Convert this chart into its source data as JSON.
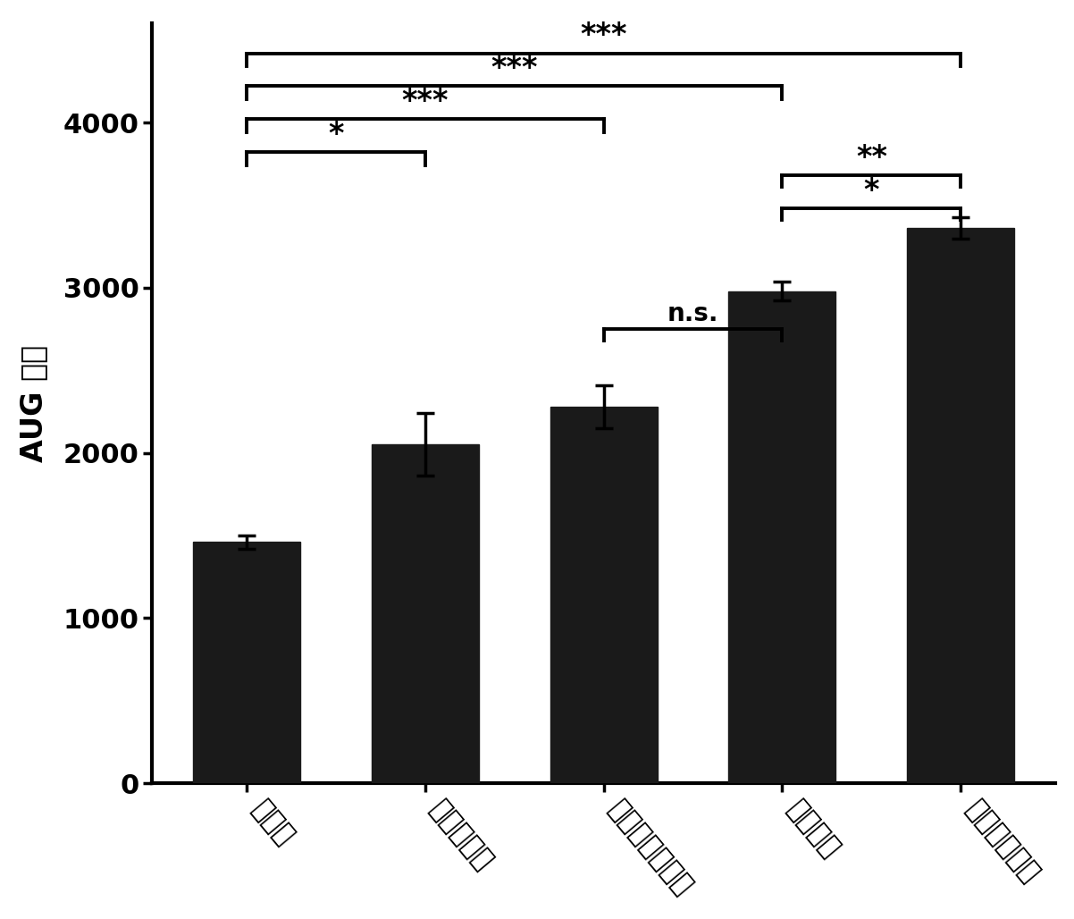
{
  "categories": [
    "健康组",
    "胸内移植组",
    "纳米纤维导管组",
    "尼龙管组",
    "无导管移植组"
  ],
  "values": [
    1460,
    2050,
    2280,
    2980,
    3360
  ],
  "errors": [
    40,
    190,
    130,
    55,
    65
  ],
  "bar_color": "#1a1a1a",
  "bar_width": 0.6,
  "ylabel": "AUG 血糖",
  "ylim": [
    0,
    4600
  ],
  "yticks": [
    0,
    1000,
    2000,
    3000,
    4000
  ],
  "background_color": "#ffffff",
  "tick_fontsize": 22,
  "label_fontsize": 24,
  "axis_linewidth": 3.0,
  "sig_bar_configs": [
    [
      0,
      1,
      3820,
      "*",
      24,
      80,
      20
    ],
    [
      0,
      2,
      4020,
      "***",
      24,
      80,
      20
    ],
    [
      0,
      3,
      4220,
      "***",
      24,
      80,
      20
    ],
    [
      0,
      4,
      4420,
      "***",
      24,
      80,
      20
    ],
    [
      2,
      3,
      2750,
      "n.s.",
      20,
      70,
      15
    ],
    [
      3,
      4,
      3480,
      "*",
      24,
      70,
      15
    ],
    [
      3,
      4,
      3680,
      "**",
      24,
      70,
      15
    ]
  ]
}
